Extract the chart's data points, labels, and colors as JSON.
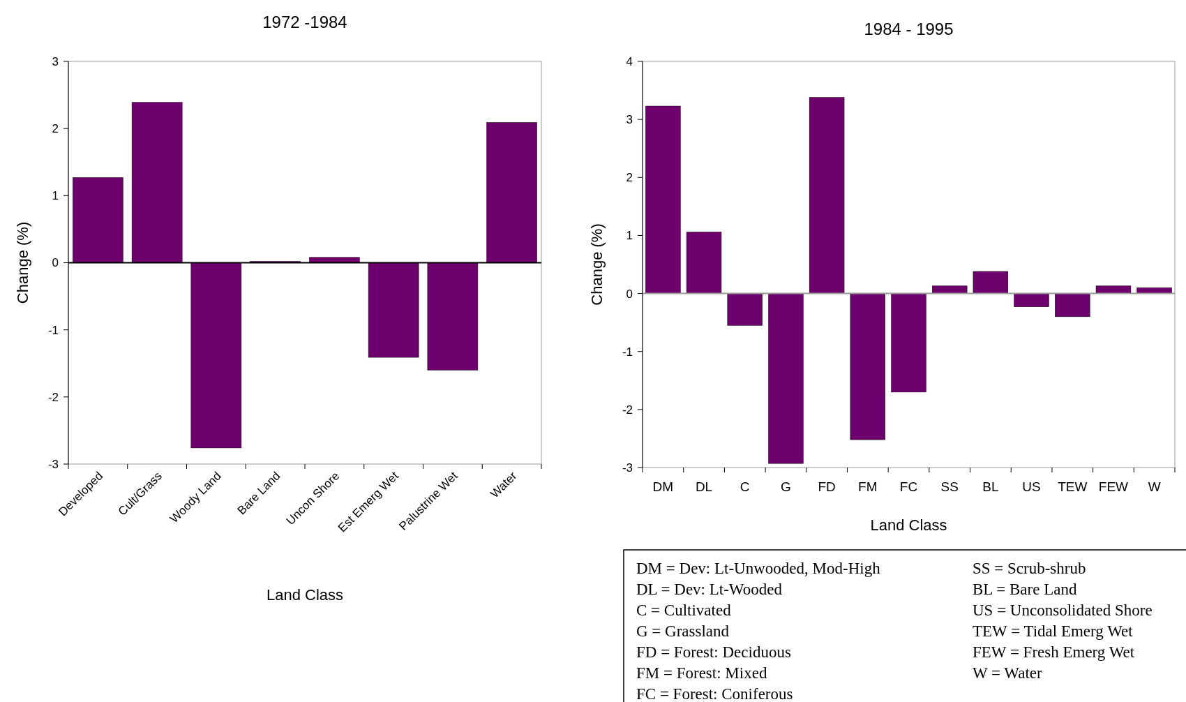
{
  "chart_data": [
    {
      "type": "bar",
      "title": "1972 -1984",
      "xlabel": "Land Class",
      "ylabel": "Change (%)",
      "categories": [
        "Developed",
        "Cult/Grass",
        "Woody Land",
        "Bare Land",
        "Uncon Shore",
        "Est Emerg Wet",
        "Palustrine Wet",
        "Water"
      ],
      "values": [
        1.27,
        2.39,
        -2.76,
        0.02,
        0.08,
        -1.41,
        -1.6,
        2.09
      ],
      "color": "#6e006e",
      "ylim": [
        -3,
        3
      ],
      "yticks": [
        -3,
        -2,
        -1,
        0,
        1,
        2,
        3
      ]
    },
    {
      "type": "bar",
      "title": "1984 - 1995",
      "xlabel": "Land Class",
      "ylabel": "Change (%)",
      "categories": [
        "DM",
        "DL",
        "C",
        "G",
        "FD",
        "FM",
        "FC",
        "SS",
        "BL",
        "US",
        "TEW",
        "FEW",
        "W"
      ],
      "values": [
        3.23,
        1.06,
        -0.55,
        -2.93,
        3.38,
        -2.52,
        -1.7,
        0.13,
        0.38,
        -0.23,
        -0.4,
        0.13,
        0.1
      ],
      "color": "#6e006e",
      "ylim": [
        -3,
        4
      ],
      "yticks": [
        -3,
        -2,
        -1,
        0,
        1,
        2,
        3,
        4
      ]
    },
    {
      "type": "other",
      "annotations": [
        "DM = Dev: Lt-Unwooded, Mod-High",
        "DL = Dev: Lt-Wooded",
        "C = Cultivated",
        "G = Grassland",
        "FD = Forest: Deciduous",
        "FM = Forest: Mixed",
        "FC = Forest: Coniferous",
        "SS = Scrub-shrub",
        "BL = Bare Land",
        "US = Unconsolidated Shore",
        "TEW = Tidal Emerg Wet",
        "FEW = Fresh Emerg Wet",
        "W = Water"
      ]
    }
  ]
}
